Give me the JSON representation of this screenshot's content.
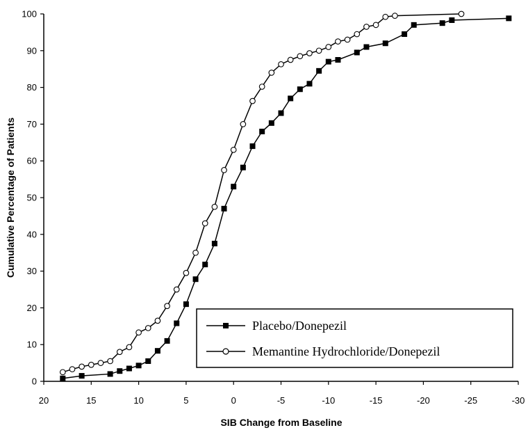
{
  "chart_data": {
    "type": "line",
    "title": "",
    "xlabel": "SIB Change from Baseline",
    "ylabel": "Cumulative Percentage of Patients",
    "xlim": [
      20,
      -30
    ],
    "ylim": [
      0,
      100
    ],
    "x_ticks": [
      20,
      15,
      10,
      5,
      0,
      -5,
      -10,
      -15,
      -20,
      -25,
      -30
    ],
    "y_ticks": [
      0,
      10,
      20,
      30,
      40,
      50,
      60,
      70,
      80,
      90,
      100
    ],
    "grid": false,
    "legend_position": "lower-right",
    "series": [
      {
        "name": "Placebo/Donepezil",
        "marker": "filled-square",
        "color": "#000000",
        "points": [
          [
            18,
            0.8
          ],
          [
            16,
            1.5
          ],
          [
            13,
            2.0
          ],
          [
            12,
            2.8
          ],
          [
            11,
            3.5
          ],
          [
            10,
            4.3
          ],
          [
            9,
            5.5
          ],
          [
            8,
            8.3
          ],
          [
            7,
            11.0
          ],
          [
            6,
            15.8
          ],
          [
            5,
            21.0
          ],
          [
            4,
            27.8
          ],
          [
            3,
            31.8
          ],
          [
            2,
            37.5
          ],
          [
            1,
            47.0
          ],
          [
            0,
            53.0
          ],
          [
            -1,
            58.2
          ],
          [
            -2,
            64.0
          ],
          [
            -3,
            68.0
          ],
          [
            -4,
            70.3
          ],
          [
            -5,
            73.0
          ],
          [
            -6,
            77.0
          ],
          [
            -7,
            79.5
          ],
          [
            -8,
            81.0
          ],
          [
            -9,
            84.5
          ],
          [
            -10,
            87.0
          ],
          [
            -11,
            87.5
          ],
          [
            -13,
            89.5
          ],
          [
            -14,
            91.0
          ],
          [
            -16,
            92.0
          ],
          [
            -18,
            94.5
          ],
          [
            -19,
            97.0
          ],
          [
            -22,
            97.5
          ],
          [
            -23,
            98.3
          ],
          [
            -29,
            98.8
          ]
        ]
      },
      {
        "name": "Memantine Hydrochloride/Donepezil",
        "marker": "open-circle",
        "color": "#000000",
        "points": [
          [
            18,
            2.5
          ],
          [
            17,
            3.3
          ],
          [
            16,
            4.0
          ],
          [
            15,
            4.5
          ],
          [
            14,
            5.0
          ],
          [
            13,
            5.5
          ],
          [
            12,
            8.0
          ],
          [
            11,
            9.3
          ],
          [
            10,
            13.3
          ],
          [
            9,
            14.5
          ],
          [
            8,
            16.5
          ],
          [
            7,
            20.5
          ],
          [
            6,
            25.0
          ],
          [
            5,
            29.5
          ],
          [
            4,
            35.0
          ],
          [
            3,
            43.0
          ],
          [
            2,
            47.5
          ],
          [
            1,
            57.5
          ],
          [
            0,
            63.0
          ],
          [
            -1,
            70.0
          ],
          [
            -2,
            76.3
          ],
          [
            -3,
            80.2
          ],
          [
            -4,
            84.0
          ],
          [
            -5,
            86.3
          ],
          [
            -6,
            87.5
          ],
          [
            -7,
            88.5
          ],
          [
            -8,
            89.3
          ],
          [
            -9,
            90.0
          ],
          [
            -10,
            91.0
          ],
          [
            -11,
            92.5
          ],
          [
            -12,
            93.0
          ],
          [
            -13,
            94.5
          ],
          [
            -14,
            96.5
          ],
          [
            -15,
            97.0
          ],
          [
            -16,
            99.2
          ],
          [
            -17,
            99.5
          ],
          [
            -24,
            100.0
          ]
        ]
      }
    ]
  }
}
